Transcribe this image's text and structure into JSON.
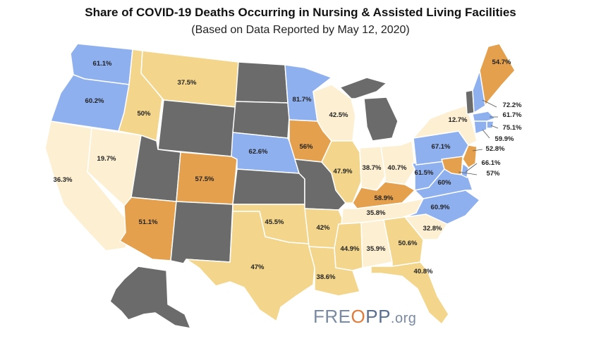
{
  "title": "Share of COVID-19 Deaths Occurring in Nursing & Assisted Living Facilities",
  "subtitle": "(Based on Data Reported by May 12, 2020)",
  "logo": {
    "part1": "FRE",
    "part2": "O",
    "part3": "PP",
    "part4": ".org"
  },
  "colors": {
    "blue": "#8fb0ef",
    "light": "#fdefd2",
    "tan": "#f3d68c",
    "orange": "#e5a04d",
    "nodata": "#6b6b6b",
    "border": "#ffffff"
  },
  "states": [
    {
      "id": "WA",
      "label": "61.1%",
      "value": 61.1,
      "category": "blue"
    },
    {
      "id": "OR",
      "label": "60.2%",
      "value": 60.2,
      "category": "blue"
    },
    {
      "id": "CA",
      "label": "36.3%",
      "value": 36.3,
      "category": "light"
    },
    {
      "id": "NV",
      "label": "19.7%",
      "value": 19.7,
      "category": "light"
    },
    {
      "id": "ID",
      "label": "50%",
      "value": 50,
      "category": "tan"
    },
    {
      "id": "MT",
      "label": "37.5%",
      "value": 37.5,
      "category": "tan"
    },
    {
      "id": "WY",
      "label": "",
      "value": null,
      "category": "nodata"
    },
    {
      "id": "UT",
      "label": "",
      "value": null,
      "category": "nodata"
    },
    {
      "id": "AZ",
      "label": "51.1%",
      "value": 51.1,
      "category": "orange"
    },
    {
      "id": "CO",
      "label": "57.5%",
      "value": 57.5,
      "category": "orange"
    },
    {
      "id": "NM",
      "label": "",
      "value": null,
      "category": "nodata"
    },
    {
      "id": "ND",
      "label": "",
      "value": null,
      "category": "nodata"
    },
    {
      "id": "SD",
      "label": "",
      "value": null,
      "category": "nodata"
    },
    {
      "id": "NE",
      "label": "62.6%",
      "value": 62.6,
      "category": "blue"
    },
    {
      "id": "KS",
      "label": "",
      "value": null,
      "category": "nodata"
    },
    {
      "id": "OK",
      "label": "45.5%",
      "value": 45.5,
      "category": "tan"
    },
    {
      "id": "TX",
      "label": "47%",
      "value": 47,
      "category": "tan"
    },
    {
      "id": "MN",
      "label": "81.7%",
      "value": 81.7,
      "category": "blue"
    },
    {
      "id": "IA",
      "label": "56%",
      "value": 56,
      "category": "orange"
    },
    {
      "id": "MO",
      "label": "",
      "value": null,
      "category": "nodata"
    },
    {
      "id": "AR",
      "label": "42%",
      "value": 42,
      "category": "tan"
    },
    {
      "id": "LA",
      "label": "38.6%",
      "value": 38.6,
      "category": "tan"
    },
    {
      "id": "WI",
      "label": "42.5%",
      "value": 42.5,
      "category": "light"
    },
    {
      "id": "IL",
      "label": "47.9%",
      "value": 47.9,
      "category": "tan"
    },
    {
      "id": "MI",
      "label": "",
      "value": null,
      "category": "nodata"
    },
    {
      "id": "IN",
      "label": "38.7%",
      "value": 38.7,
      "category": "light"
    },
    {
      "id": "OH",
      "label": "40.7%",
      "value": 40.7,
      "category": "light"
    },
    {
      "id": "KY",
      "label": "58.9%",
      "value": 58.9,
      "category": "orange"
    },
    {
      "id": "TN",
      "label": "35.8%",
      "value": 35.8,
      "category": "light"
    },
    {
      "id": "MS",
      "label": "44.9%",
      "value": 44.9,
      "category": "tan"
    },
    {
      "id": "AL",
      "label": "35.9%",
      "value": 35.9,
      "category": "light"
    },
    {
      "id": "GA",
      "label": "50.6%",
      "value": 50.6,
      "category": "tan"
    },
    {
      "id": "FL",
      "label": "40.8%",
      "value": 40.8,
      "category": "tan"
    },
    {
      "id": "SC",
      "label": "32.8%",
      "value": 32.8,
      "category": "light"
    },
    {
      "id": "NC",
      "label": "60.9%",
      "value": 60.9,
      "category": "blue"
    },
    {
      "id": "VA",
      "label": "60%",
      "value": 60,
      "category": "blue"
    },
    {
      "id": "WV",
      "label": "61.5%",
      "value": 61.5,
      "category": "blue"
    },
    {
      "id": "PA",
      "label": "67.1%",
      "value": 67.1,
      "category": "blue"
    },
    {
      "id": "NY",
      "label": "12.7%",
      "value": 12.7,
      "category": "light"
    },
    {
      "id": "VT",
      "label": "",
      "value": null,
      "category": "nodata"
    },
    {
      "id": "NH",
      "label": "72.2%",
      "value": 72.2,
      "category": "blue"
    },
    {
      "id": "ME",
      "label": "54.7%",
      "value": 54.7,
      "category": "orange"
    },
    {
      "id": "MA",
      "label": "61.7%",
      "value": 61.7,
      "category": "blue"
    },
    {
      "id": "RI",
      "label": "75.1%",
      "value": 75.1,
      "category": "blue"
    },
    {
      "id": "CT",
      "label": "59.9%",
      "value": 59.9,
      "category": "blue"
    },
    {
      "id": "NJ",
      "label": "52.8%",
      "value": 52.8,
      "category": "orange"
    },
    {
      "id": "DE",
      "label": "66.1%",
      "value": 66.1,
      "category": "blue"
    },
    {
      "id": "MD",
      "label": "57%",
      "value": 57,
      "category": "orange"
    },
    {
      "id": "AK",
      "label": "",
      "value": null,
      "category": "nodata"
    }
  ]
}
